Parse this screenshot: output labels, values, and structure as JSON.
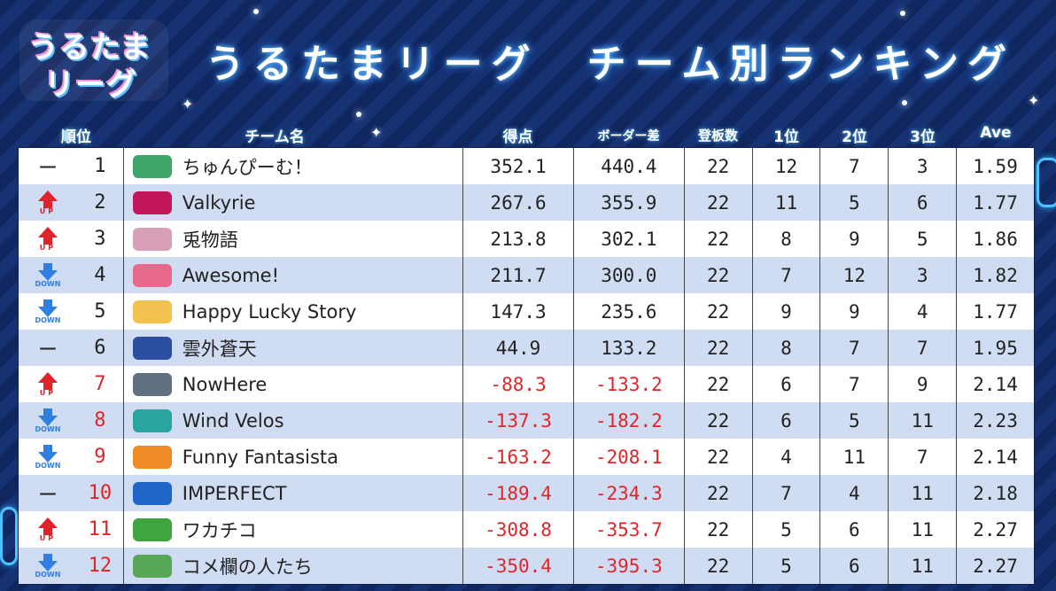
{
  "logo": {
    "line1": "うるたま",
    "line2": "リーグ"
  },
  "title": "うるたまリーグ　チーム別ランキング",
  "headers": {
    "rank": "順位",
    "team": "チーム名",
    "score": "得点",
    "border_diff": "ボーダー差",
    "boards": "登板数",
    "first": "1位",
    "second": "2位",
    "third": "3位",
    "ave": "Ave"
  },
  "colors": {
    "up": "#e0232b",
    "down": "#2f7fe0",
    "negative": "#e0252a",
    "background": "#10265e"
  },
  "rows": [
    {
      "move": "none",
      "move_text": "ー",
      "rank": "1",
      "team": "ちゅんぴーむ！",
      "icon": "team-logo-icon",
      "score": "352.1",
      "diff": "440.4",
      "boards": "22",
      "first": "12",
      "second": "7",
      "third": "3",
      "ave": "1.59",
      "negative": false
    },
    {
      "move": "up",
      "move_text": "UP",
      "rank": "2",
      "team": "Valkyrie",
      "icon": "team-logo-icon",
      "score": "267.6",
      "diff": "355.9",
      "boards": "22",
      "first": "11",
      "second": "5",
      "third": "6",
      "ave": "1.77",
      "negative": false
    },
    {
      "move": "up",
      "move_text": "UP",
      "rank": "3",
      "team": "兎物語",
      "icon": "team-logo-icon",
      "score": "213.8",
      "diff": "302.1",
      "boards": "22",
      "first": "8",
      "second": "9",
      "third": "5",
      "ave": "1.86",
      "negative": false
    },
    {
      "move": "down",
      "move_text": "DOWN",
      "rank": "4",
      "team": "Awesome!",
      "icon": "team-logo-icon",
      "score": "211.7",
      "diff": "300.0",
      "boards": "22",
      "first": "7",
      "second": "12",
      "third": "3",
      "ave": "1.82",
      "negative": false
    },
    {
      "move": "down",
      "move_text": "DOWN",
      "rank": "5",
      "team": "Happy Lucky Story",
      "icon": "team-logo-icon",
      "score": "147.3",
      "diff": "235.6",
      "boards": "22",
      "first": "9",
      "second": "9",
      "third": "4",
      "ave": "1.77",
      "negative": false
    },
    {
      "move": "none",
      "move_text": "ー",
      "rank": "6",
      "team": "雲外蒼天",
      "icon": "team-logo-icon",
      "score": "44.9",
      "diff": "133.2",
      "boards": "22",
      "first": "8",
      "second": "7",
      "third": "7",
      "ave": "1.95",
      "negative": false
    },
    {
      "move": "up",
      "move_text": "UP",
      "rank": "7",
      "team": "NowHere",
      "icon": "team-logo-icon",
      "score": "-88.3",
      "diff": "-133.2",
      "boards": "22",
      "first": "6",
      "second": "7",
      "third": "9",
      "ave": "2.14",
      "negative": true
    },
    {
      "move": "down",
      "move_text": "DOWN",
      "rank": "8",
      "team": "Wind Velos",
      "icon": "team-logo-icon",
      "score": "-137.3",
      "diff": "-182.2",
      "boards": "22",
      "first": "6",
      "second": "5",
      "third": "11",
      "ave": "2.23",
      "negative": true
    },
    {
      "move": "down",
      "move_text": "DOWN",
      "rank": "9",
      "team": "Funny Fantasista",
      "icon": "team-logo-icon",
      "score": "-163.2",
      "diff": "-208.1",
      "boards": "22",
      "first": "4",
      "second": "11",
      "third": "7",
      "ave": "2.14",
      "negative": true
    },
    {
      "move": "none",
      "move_text": "ー",
      "rank": "10",
      "team": "IMPERFECT",
      "icon": "team-logo-icon",
      "score": "-189.4",
      "diff": "-234.3",
      "boards": "22",
      "first": "7",
      "second": "4",
      "third": "11",
      "ave": "2.18",
      "negative": true
    },
    {
      "move": "up",
      "move_text": "UP",
      "rank": "11",
      "team": "ワカチコ",
      "icon": "team-logo-icon",
      "score": "-308.8",
      "diff": "-353.7",
      "boards": "22",
      "first": "5",
      "second": "6",
      "third": "11",
      "ave": "2.27",
      "negative": true
    },
    {
      "move": "down",
      "move_text": "DOWN",
      "rank": "12",
      "team": "コメ欄の人たち",
      "icon": "team-logo-icon",
      "score": "-350.4",
      "diff": "-395.3",
      "boards": "22",
      "first": "5",
      "second": "6",
      "third": "11",
      "ave": "2.27",
      "negative": true
    }
  ]
}
